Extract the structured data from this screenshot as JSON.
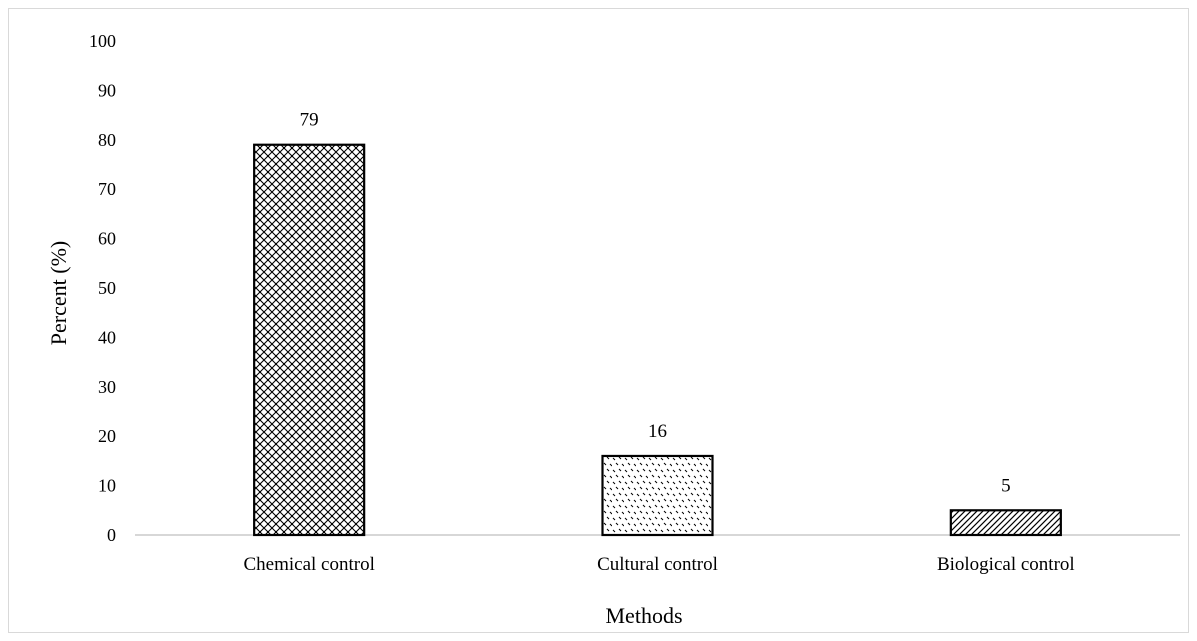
{
  "chart_data": {
    "type": "bar",
    "title": "",
    "xlabel": "Methods",
    "ylabel": "Percent (%)",
    "categories": [
      "Chemical control",
      "Cultural control",
      "Biological control"
    ],
    "values": [
      79,
      16,
      5
    ],
    "data_labels": [
      "79",
      "16",
      "5"
    ],
    "ylim": [
      0,
      100
    ],
    "yticks": [
      "0",
      "10",
      "20",
      "30",
      "40",
      "50",
      "60",
      "70",
      "80",
      "90",
      "100"
    ],
    "grid": false,
    "legend": "none",
    "bar_patterns": [
      "crosshatch-dots",
      "scattered-dots",
      "diagonal-lines"
    ],
    "colors": {
      "bar_stroke": "#000000",
      "pattern_ink": "#000000",
      "axis_line": "#bfbfbf",
      "text": "#000000"
    }
  }
}
